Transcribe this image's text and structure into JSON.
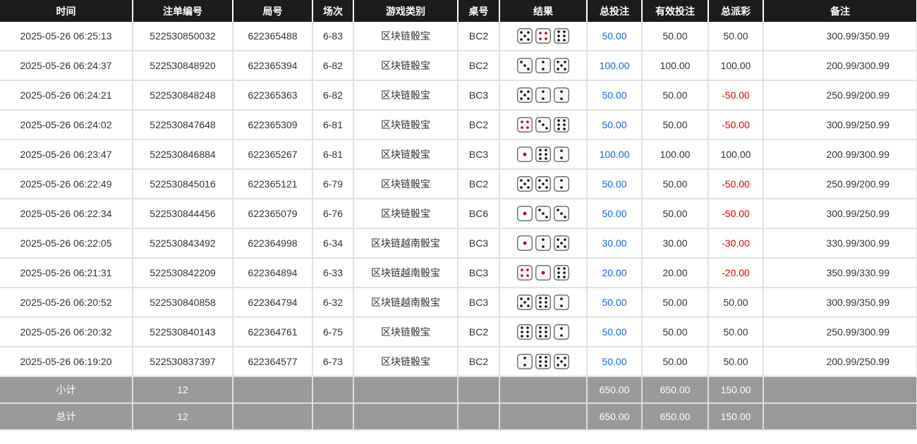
{
  "headers": [
    "时间",
    "注单编号",
    "局号",
    "场次",
    "游戏类别",
    "桌号",
    "结果",
    "总投注",
    "有效投注",
    "总派彩",
    "备注"
  ],
  "rows": [
    {
      "time": "2025-05-26 06:25:13",
      "bet_id": "522530850032",
      "round": "622365488",
      "session": "6-83",
      "game": "区块链骰宝",
      "table": "BC2",
      "dice": [
        5,
        4,
        6
      ],
      "total": "50.00",
      "valid": "50.00",
      "payout": "50.00",
      "payout_negative": false,
      "note": "300.99/350.99"
    },
    {
      "time": "2025-05-26 06:24:37",
      "bet_id": "522530848920",
      "round": "622365394",
      "session": "6-82",
      "game": "区块链骰宝",
      "table": "BC2",
      "dice": [
        3,
        2,
        5
      ],
      "total": "100.00",
      "valid": "100.00",
      "payout": "100.00",
      "payout_negative": false,
      "note": "200.99/300.99"
    },
    {
      "time": "2025-05-26 06:24:21",
      "bet_id": "522530848248",
      "round": "622365363",
      "session": "6-82",
      "game": "区块链骰宝",
      "table": "BC3",
      "dice": [
        5,
        2,
        2
      ],
      "total": "50.00",
      "valid": "50.00",
      "payout": "-50.00",
      "payout_negative": true,
      "note": "250.99/200.99"
    },
    {
      "time": "2025-05-26 06:24:02",
      "bet_id": "522530847648",
      "round": "622365309",
      "session": "6-81",
      "game": "区块链骰宝",
      "table": "BC2",
      "dice": [
        4,
        3,
        6
      ],
      "total": "50.00",
      "valid": "50.00",
      "payout": "-50.00",
      "payout_negative": true,
      "note": "300.99/250.99"
    },
    {
      "time": "2025-05-26 06:23:47",
      "bet_id": "522530846884",
      "round": "622365267",
      "session": "6-81",
      "game": "区块链骰宝",
      "table": "BC3",
      "dice": [
        1,
        6,
        2
      ],
      "total": "100.00",
      "valid": "100.00",
      "payout": "100.00",
      "payout_negative": false,
      "note": "200.99/300.99"
    },
    {
      "time": "2025-05-26 06:22:49",
      "bet_id": "522530845016",
      "round": "622365121",
      "session": "6-79",
      "game": "区块链骰宝",
      "table": "BC2",
      "dice": [
        5,
        5,
        2
      ],
      "total": "50.00",
      "valid": "50.00",
      "payout": "-50.00",
      "payout_negative": true,
      "note": "250.99/200.99"
    },
    {
      "time": "2025-05-26 06:22:34",
      "bet_id": "522530844456",
      "round": "622365079",
      "session": "6-76",
      "game": "区块链骰宝",
      "table": "BC6",
      "dice": [
        1,
        3,
        3
      ],
      "total": "50.00",
      "valid": "50.00",
      "payout": "-50.00",
      "payout_negative": true,
      "note": "300.99/250.99"
    },
    {
      "time": "2025-05-26 06:22:05",
      "bet_id": "522530843492",
      "round": "622364998",
      "session": "6-34",
      "game": "区块链越南骰宝",
      "table": "BC3",
      "dice": [
        1,
        2,
        5
      ],
      "total": "30.00",
      "valid": "30.00",
      "payout": "-30.00",
      "payout_negative": true,
      "note": "330.99/300.99"
    },
    {
      "time": "2025-05-26 06:21:31",
      "bet_id": "522530842209",
      "round": "622364894",
      "session": "6-33",
      "game": "区块链越南骰宝",
      "table": "BC3",
      "dice": [
        4,
        1,
        6
      ],
      "total": "20.00",
      "valid": "20.00",
      "payout": "-20.00",
      "payout_negative": true,
      "note": "350.99/330.99"
    },
    {
      "time": "2025-05-26 06:20:52",
      "bet_id": "522530840858",
      "round": "622364794",
      "session": "6-32",
      "game": "区块链越南骰宝",
      "table": "BC3",
      "dice": [
        5,
        6,
        2
      ],
      "total": "50.00",
      "valid": "50.00",
      "payout": "50.00",
      "payout_negative": false,
      "note": "300.99/350.99"
    },
    {
      "time": "2025-05-26 06:20:32",
      "bet_id": "522530840143",
      "round": "622364761",
      "session": "6-75",
      "game": "区块链骰宝",
      "table": "BC2",
      "dice": [
        6,
        6,
        2
      ],
      "total": "50.00",
      "valid": "50.00",
      "payout": "50.00",
      "payout_negative": false,
      "note": "250.99/300.99"
    },
    {
      "time": "2025-05-26 06:19:20",
      "bet_id": "522530837397",
      "round": "622364577",
      "session": "6-73",
      "game": "区块链骰宝",
      "table": "BC2",
      "dice": [
        2,
        6,
        5
      ],
      "total": "50.00",
      "valid": "50.00",
      "payout": "50.00",
      "payout_negative": false,
      "note": "200.99/250.99"
    }
  ],
  "footer": [
    {
      "label": "小计",
      "count": "12",
      "total": "650.00",
      "valid": "650.00",
      "payout": "150.00"
    },
    {
      "label": "总计",
      "count": "12",
      "total": "650.00",
      "valid": "650.00",
      "payout": "150.00"
    }
  ],
  "colors": {
    "header_bg": "#1c1c1c",
    "footer_bg": "#999999",
    "bet_amount": "#1565e0",
    "negative": "#e00000",
    "pip_red": "#c00000"
  }
}
